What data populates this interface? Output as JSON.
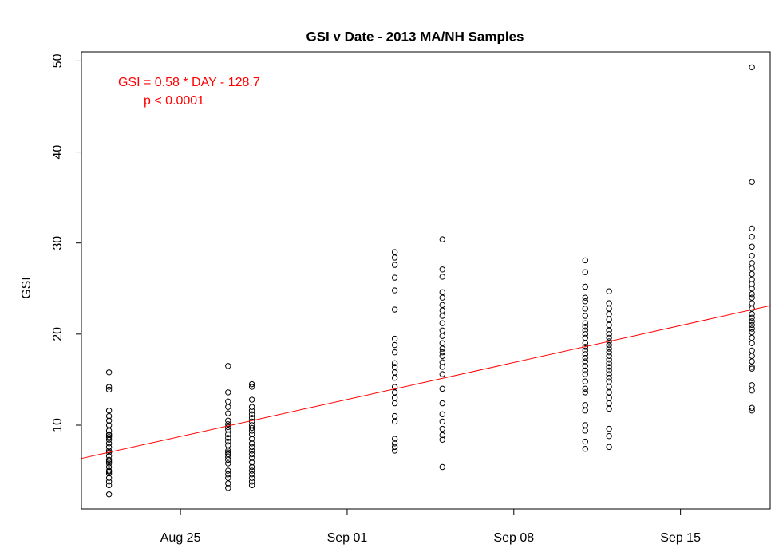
{
  "chart_data": {
    "type": "scatter",
    "title": "GSI v Date - 2013 MA/NH Samples",
    "y_label": "GSI",
    "annotations": [
      "GSI = 0.58 * DAY - 128.7",
      "p < 0.0001"
    ],
    "fit": {
      "slope": 0.58,
      "intercept": -128.7,
      "color": "#ff0000"
    },
    "color": "#000000",
    "x": [
      234,
      234,
      234,
      234,
      234,
      234,
      234,
      234,
      234,
      234,
      234,
      234,
      234,
      234,
      234,
      234,
      234,
      234,
      234,
      234,
      234,
      234,
      234,
      234,
      234,
      234,
      234,
      234,
      239,
      239,
      239,
      239,
      239,
      239,
      239,
      239,
      239,
      239,
      239,
      239,
      239,
      239,
      239,
      239,
      239,
      239,
      239,
      239,
      239,
      239,
      239,
      239,
      240,
      240,
      240,
      240,
      240,
      240,
      240,
      240,
      240,
      240,
      240,
      240,
      240,
      240,
      240,
      240,
      240,
      240,
      240,
      240,
      240,
      240,
      240,
      240,
      240,
      246,
      246,
      246,
      246,
      246,
      246,
      246,
      246,
      246,
      246,
      246,
      246,
      246,
      246,
      246,
      246,
      246,
      246,
      246,
      246,
      246,
      246,
      246,
      248,
      248,
      248,
      248,
      248,
      248,
      248,
      248,
      248,
      248,
      248,
      248,
      248,
      248,
      248,
      248,
      248,
      248,
      248,
      248,
      248,
      248,
      248,
      248,
      248,
      248,
      254,
      254,
      254,
      254,
      254,
      254,
      254,
      254,
      254,
      254,
      254,
      254,
      254,
      254,
      254,
      254,
      254,
      254,
      254,
      254,
      254,
      254,
      254,
      254,
      254,
      254,
      254,
      254,
      254,
      254,
      255,
      255,
      255,
      255,
      255,
      255,
      255,
      255,
      255,
      255,
      255,
      255,
      255,
      255,
      255,
      255,
      255,
      255,
      255,
      255,
      255,
      255,
      255,
      255,
      255,
      255,
      255,
      255,
      255,
      261,
      261,
      261,
      261,
      261,
      261,
      261,
      261,
      261,
      261,
      261,
      261,
      261,
      261,
      261,
      261,
      261,
      261,
      261,
      261,
      261,
      261,
      261,
      261,
      261,
      261,
      261,
      261,
      261,
      261,
      261,
      261,
      261
    ],
    "values": [
      15.8,
      14.2,
      13.9,
      11.6,
      11.0,
      10.5,
      10.0,
      9.4,
      9.0,
      8.7,
      8.4,
      8.0,
      7.6,
      7.2,
      7.0,
      6.6,
      6.2,
      5.8,
      5.4,
      5.0,
      4.7,
      4.2,
      3.8,
      3.4,
      2.4,
      6.0,
      8.9,
      4.9,
      16.5,
      13.6,
      12.6,
      12.0,
      11.3,
      10.5,
      10.1,
      9.5,
      9.0,
      8.6,
      8.2,
      7.8,
      7.2,
      6.8,
      6.5,
      6.2,
      5.8,
      5.0,
      4.6,
      4.2,
      3.6,
      3.1,
      9.8,
      7.0,
      14.5,
      14.2,
      12.8,
      12.0,
      11.6,
      11.2,
      10.8,
      10.4,
      10.0,
      9.7,
      9.4,
      9.0,
      8.5,
      8.0,
      7.6,
      7.2,
      6.8,
      6.4,
      5.9,
      5.4,
      5.0,
      4.6,
      4.2,
      3.8,
      3.4,
      29.0,
      28.4,
      27.6,
      26.2,
      24.8,
      22.7,
      19.5,
      18.8,
      18.0,
      16.8,
      16.4,
      15.8,
      15.2,
      14.2,
      13.6,
      13.0,
      12.4,
      11.0,
      10.4,
      8.5,
      8.0,
      7.6,
      7.2,
      30.4,
      27.1,
      26.3,
      24.6,
      24.0,
      23.2,
      22.6,
      22.0,
      21.2,
      20.4,
      19.8,
      19.0,
      18.4,
      18.0,
      17.6,
      16.9,
      16.4,
      15.6,
      14.0,
      12.4,
      11.2,
      10.4,
      9.6,
      8.9,
      8.4,
      5.4,
      28.1,
      26.8,
      25.2,
      24.0,
      23.6,
      22.8,
      22.0,
      21.2,
      20.8,
      20.4,
      20.0,
      19.6,
      19.0,
      18.6,
      18.2,
      17.8,
      17.4,
      17.0,
      16.5,
      16.0,
      15.6,
      14.8,
      14.0,
      13.6,
      12.2,
      11.6,
      10.0,
      9.4,
      8.2,
      7.4,
      24.7,
      23.4,
      22.8,
      22.2,
      21.6,
      21.0,
      20.4,
      20.0,
      19.6,
      19.2,
      18.8,
      18.4,
      18.0,
      17.6,
      17.2,
      16.8,
      16.4,
      16.0,
      15.6,
      15.2,
      14.8,
      14.2,
      13.6,
      13.0,
      12.4,
      11.8,
      9.6,
      8.8,
      7.6,
      49.3,
      36.7,
      31.6,
      30.7,
      29.6,
      28.6,
      27.8,
      27.2,
      26.6,
      26.0,
      25.5,
      25.0,
      24.4,
      24.0,
      23.4,
      22.8,
      22.2,
      21.8,
      21.4,
      21.0,
      20.6,
      20.2,
      19.6,
      19.0,
      18.2,
      17.6,
      17.0,
      16.4,
      16.2,
      14.4,
      13.8,
      11.9,
      11.6
    ],
    "xlim": [
      232.84,
      261.8
    ],
    "ylim": [
      0.8,
      51
    ],
    "xticks": [
      {
        "value": 237,
        "label": "Aug 25"
      },
      {
        "value": 244,
        "label": "Sep 01"
      },
      {
        "value": 251,
        "label": "Sep 08"
      },
      {
        "value": 258,
        "label": "Sep 15"
      }
    ],
    "yticks": [
      10,
      20,
      30,
      40,
      50
    ]
  }
}
